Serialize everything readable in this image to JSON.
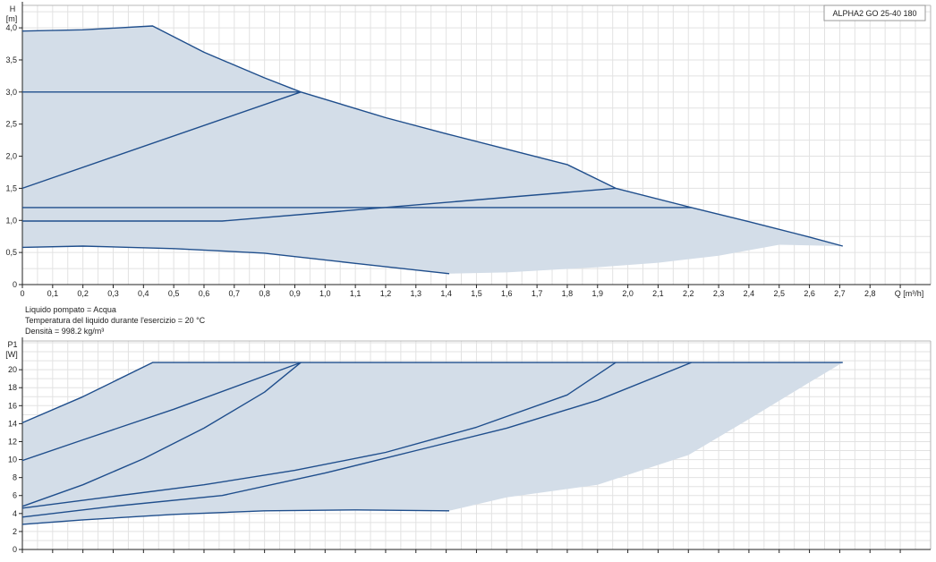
{
  "model_label": "ALPHA2 GO 25-40 180",
  "info_lines": [
    "Liquido pompato = Acqua",
    "Temperatura del liquido durante l'esercizio = 20 °C",
    "Densità = 998.2 kg/m³"
  ],
  "colors": {
    "curve": "#1f4e8c",
    "fill": "#d3dde8",
    "grid": "#e2e2e2",
    "axis": "#222222"
  },
  "chart_data": [
    {
      "type": "line",
      "ylabel_top": "H",
      "ylabel_unit": "[m]",
      "xlabel": "Q [m³/h]",
      "xlim": [
        0,
        2.95
      ],
      "ylim": [
        0,
        4.35
      ],
      "x_ticks": [
        "0",
        "0,1",
        "0,2",
        "0,3",
        "0,4",
        "0,5",
        "0,6",
        "0,7",
        "0,8",
        "0,9",
        "1,0",
        "1,1",
        "1,2",
        "1,3",
        "1,4",
        "1,5",
        "1,6",
        "1,7",
        "1,8",
        "1,9",
        "2,0",
        "2,1",
        "2,2",
        "2,3",
        "2,4",
        "2,5",
        "2,6",
        "2,7",
        "2,8"
      ],
      "y_ticks": [
        "0",
        "0,5",
        "1,0",
        "1,5",
        "2,0",
        "2,5",
        "3,0",
        "3,5",
        "4,0"
      ],
      "envelope": [
        [
          0,
          3.95
        ],
        [
          0.1,
          3.95
        ],
        [
          0.2,
          3.97
        ],
        [
          0.3,
          4.0
        ],
        [
          0.4,
          4.03
        ],
        [
          0.43,
          4.03
        ],
        [
          0.6,
          3.62
        ],
        [
          0.8,
          3.22
        ],
        [
          0.92,
          3.0
        ],
        [
          1.2,
          2.6
        ],
        [
          1.4,
          2.35
        ],
        [
          1.6,
          2.11
        ],
        [
          1.8,
          1.87
        ],
        [
          1.96,
          1.5
        ],
        [
          2.21,
          1.2
        ],
        [
          2.4,
          0.98
        ],
        [
          2.6,
          0.74
        ],
        [
          2.71,
          0.6
        ],
        [
          2.5,
          0.62
        ],
        [
          2.3,
          0.45
        ],
        [
          2.1,
          0.34
        ],
        [
          1.9,
          0.27
        ],
        [
          1.6,
          0.19
        ],
        [
          1.41,
          0.17
        ],
        [
          1.1,
          0.33
        ],
        [
          0.8,
          0.49
        ],
        [
          0.5,
          0.56
        ],
        [
          0.2,
          0.6
        ],
        [
          0,
          0.58
        ]
      ],
      "series": [
        {
          "points": [
            [
              0,
              3.95
            ],
            [
              0.2,
              3.97
            ],
            [
              0.43,
              4.03
            ],
            [
              0.6,
              3.62
            ],
            [
              0.8,
              3.22
            ],
            [
              0.92,
              3.0
            ],
            [
              1.2,
              2.6
            ],
            [
              1.4,
              2.35
            ],
            [
              1.6,
              2.11
            ],
            [
              1.8,
              1.87
            ],
            [
              1.96,
              1.5
            ],
            [
              2.21,
              1.2
            ],
            [
              2.4,
              0.98
            ],
            [
              2.6,
              0.74
            ],
            [
              2.71,
              0.6
            ]
          ]
        },
        {
          "points": [
            [
              0,
              3.0
            ],
            [
              0.92,
              3.0
            ]
          ]
        },
        {
          "points": [
            [
              0,
              1.5
            ],
            [
              0.92,
              3.0
            ]
          ]
        },
        {
          "points": [
            [
              0,
              1.2
            ],
            [
              2.21,
              1.2
            ]
          ]
        },
        {
          "points": [
            [
              0,
              0.99
            ],
            [
              0.66,
              0.99
            ],
            [
              1.96,
              1.5
            ]
          ]
        },
        {
          "points": [
            [
              0,
              0.58
            ],
            [
              0.2,
              0.6
            ],
            [
              0.5,
              0.56
            ],
            [
              0.8,
              0.49
            ],
            [
              1.1,
              0.33
            ],
            [
              1.41,
              0.17
            ]
          ]
        }
      ]
    },
    {
      "type": "line",
      "ylabel_top": "P1",
      "ylabel_unit": "[W]",
      "xlim": [
        0,
        2.95
      ],
      "ylim": [
        0,
        23.2
      ],
      "y_ticks": [
        "0",
        "2",
        "4",
        "6",
        "8",
        "10",
        "12",
        "14",
        "16",
        "18",
        "20"
      ],
      "envelope": [
        [
          0,
          14.1
        ],
        [
          0.2,
          17.0
        ],
        [
          0.43,
          20.8
        ],
        [
          2.71,
          20.8
        ],
        [
          2.6,
          18.6
        ],
        [
          2.4,
          14.5
        ],
        [
          2.2,
          10.5
        ],
        [
          1.9,
          7.2
        ],
        [
          1.6,
          5.8
        ],
        [
          1.41,
          4.3
        ],
        [
          1.1,
          4.4
        ],
        [
          0.8,
          4.3
        ],
        [
          0.5,
          3.9
        ],
        [
          0.2,
          3.3
        ],
        [
          0,
          2.8
        ]
      ],
      "series": [
        {
          "points": [
            [
              0,
              14.1
            ],
            [
              0.2,
              17.0
            ],
            [
              0.43,
              20.8
            ],
            [
              2.71,
              20.8
            ]
          ]
        },
        {
          "points": [
            [
              0,
              9.9
            ],
            [
              0.2,
              12.2
            ],
            [
              0.5,
              15.6
            ],
            [
              0.92,
              20.8
            ]
          ]
        },
        {
          "points": [
            [
              0,
              4.8
            ],
            [
              0.2,
              7.2
            ],
            [
              0.4,
              10.1
            ],
            [
              0.6,
              13.5
            ],
            [
              0.8,
              17.5
            ],
            [
              0.92,
              20.8
            ]
          ]
        },
        {
          "points": [
            [
              0,
              4.6
            ],
            [
              0.3,
              5.9
            ],
            [
              0.6,
              7.2
            ],
            [
              0.9,
              8.8
            ],
            [
              1.2,
              10.8
            ],
            [
              1.5,
              13.6
            ],
            [
              1.8,
              17.2
            ],
            [
              1.96,
              20.8
            ]
          ]
        },
        {
          "points": [
            [
              0,
              3.6
            ],
            [
              0.3,
              4.8
            ],
            [
              0.66,
              6.0
            ],
            [
              1.0,
              8.5
            ],
            [
              1.3,
              11.0
            ],
            [
              1.6,
              13.5
            ],
            [
              1.9,
              16.6
            ],
            [
              2.21,
              20.8
            ]
          ]
        },
        {
          "points": [
            [
              0,
              2.8
            ],
            [
              0.2,
              3.3
            ],
            [
              0.5,
              3.9
            ],
            [
              0.8,
              4.3
            ],
            [
              1.1,
              4.4
            ],
            [
              1.41,
              4.3
            ]
          ]
        }
      ]
    }
  ]
}
